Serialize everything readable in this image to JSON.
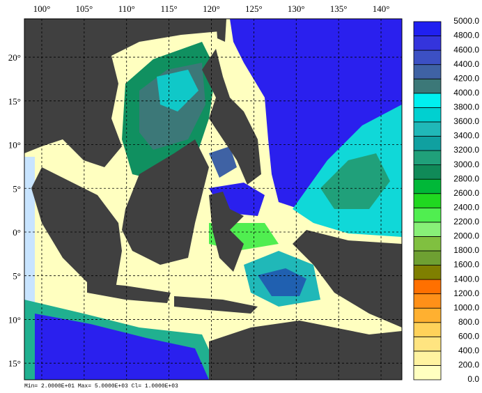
{
  "map": {
    "xlim": [
      97.95,
      142.46
    ],
    "ylim": [
      -16.9,
      24.39
    ],
    "lon_ticks": [
      {
        "value": 100,
        "label": "100°"
      },
      {
        "value": 105,
        "label": "105°"
      },
      {
        "value": 110,
        "label": "110°"
      },
      {
        "value": 115,
        "label": "115°"
      },
      {
        "value": 120,
        "label": "120°"
      },
      {
        "value": 125,
        "label": "125°"
      },
      {
        "value": 130,
        "label": "130°"
      },
      {
        "value": 135,
        "label": "135°"
      },
      {
        "value": 140,
        "label": "140°"
      }
    ],
    "lat_ticks": [
      {
        "value": 20,
        "label": "20°"
      },
      {
        "value": 15,
        "label": "15°"
      },
      {
        "value": 10,
        "label": "10°"
      },
      {
        "value": 5,
        "label": "5°"
      },
      {
        "value": 0,
        "label": "0°"
      },
      {
        "value": -5,
        "label": "5°"
      },
      {
        "value": -10,
        "label": "10°"
      },
      {
        "value": -15,
        "label": "15°"
      }
    ],
    "colorbar": {
      "levels": [
        {
          "value": 0,
          "label": "0.0"
        },
        {
          "value": 200,
          "label": "200.0"
        },
        {
          "value": 400,
          "label": "400.0"
        },
        {
          "value": 600,
          "label": "600.0"
        },
        {
          "value": 800,
          "label": "800.0"
        },
        {
          "value": 1000,
          "label": "1000.0"
        },
        {
          "value": 1200,
          "label": "1200.0"
        },
        {
          "value": 1400,
          "label": "1400.0"
        },
        {
          "value": 1600,
          "label": "1600.0"
        },
        {
          "value": 1800,
          "label": "1800.0"
        },
        {
          "value": 2000,
          "label": "2000.0"
        },
        {
          "value": 2200,
          "label": "2200.0"
        },
        {
          "value": 2400,
          "label": "2400.0"
        },
        {
          "value": 2600,
          "label": "2600.0"
        },
        {
          "value": 2800,
          "label": "2800.0"
        },
        {
          "value": 3000,
          "label": "3000.0"
        },
        {
          "value": 3200,
          "label": "3200.0"
        },
        {
          "value": 3400,
          "label": "3400.0"
        },
        {
          "value": 3600,
          "label": "3600.0"
        },
        {
          "value": 3800,
          "label": "3800.0"
        },
        {
          "value": 4000,
          "label": "4000.0"
        },
        {
          "value": 4200,
          "label": "4200.0"
        },
        {
          "value": 4400,
          "label": "4400.0"
        },
        {
          "value": 4600,
          "label": "4600.0"
        },
        {
          "value": 4800,
          "label": "4800.0"
        },
        {
          "value": 5000,
          "label": "5000.0"
        }
      ],
      "colors": [
        "#ffffc0",
        "#fff3a0",
        "#ffe480",
        "#ffd25a",
        "#ffb030",
        "#ff9018",
        "#ff7000",
        "#7f7f00",
        "#6ea032",
        "#80c040",
        "#88f078",
        "#50ee50",
        "#20d820",
        "#00b838",
        "#108a58",
        "#20a07a",
        "#10a0a0",
        "#20b8b8",
        "#00d0d0",
        "#00f0f0",
        "#3c7878",
        "#3f62a4",
        "#3c50c4",
        "#3434dc",
        "#2020f0"
      ]
    },
    "footer": "Min= 2.0000E+01  Max= 5.0000E+03  Cl= 1.0000E+03"
  }
}
